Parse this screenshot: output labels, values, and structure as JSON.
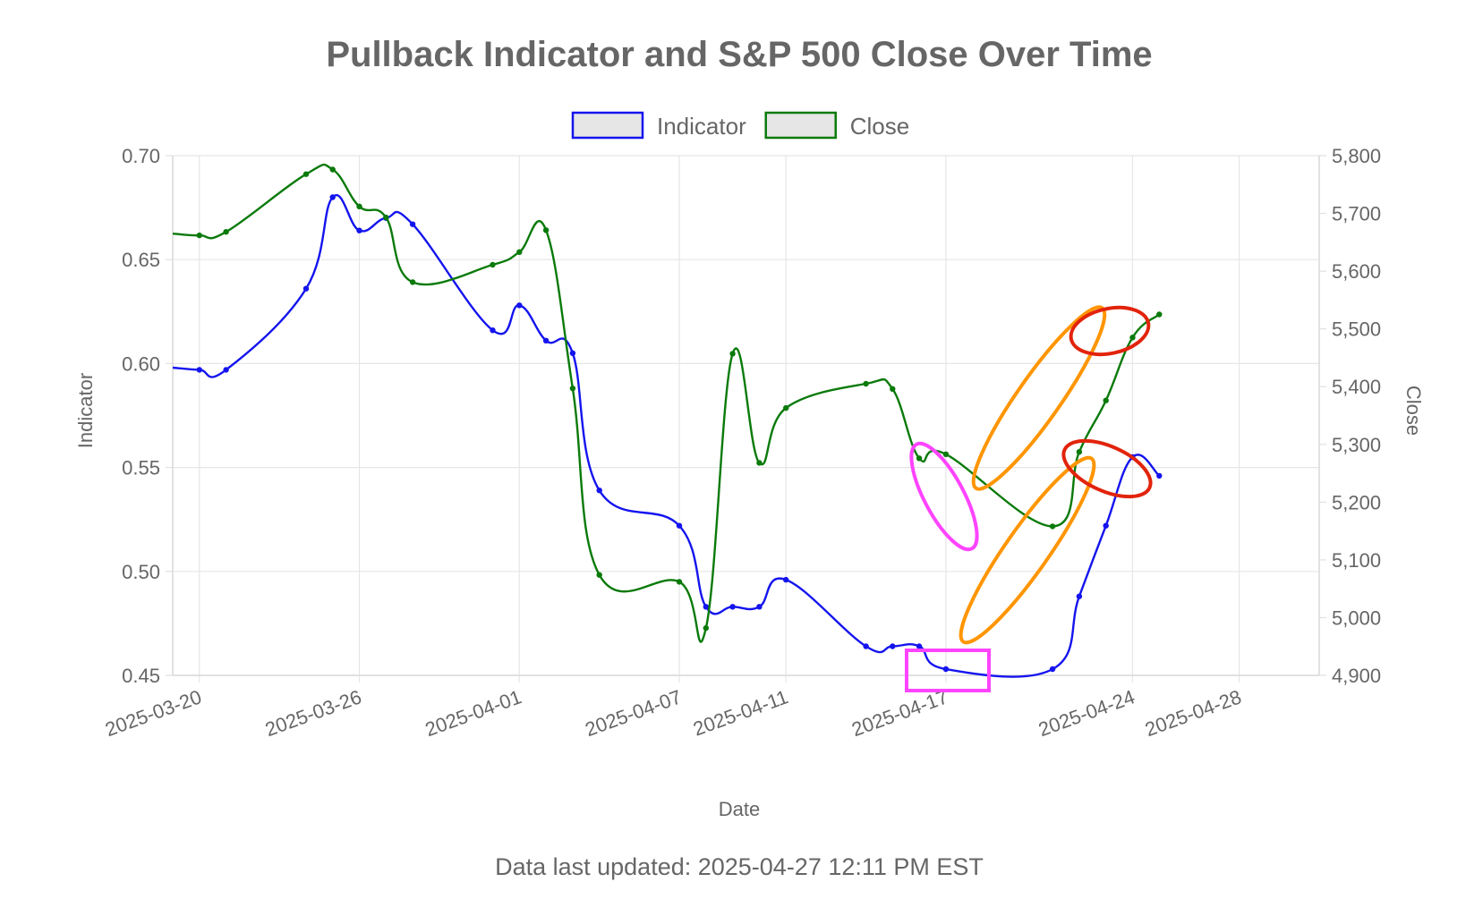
{
  "chart_data": {
    "type": "line",
    "title": "Pullback Indicator and S&P 500 Close Over Time",
    "xlabel": "Date",
    "ylabel_left": "Indicator",
    "ylabel_right": "Close",
    "x_range": [
      "2025-03-19",
      "2025-04-31"
    ],
    "x_ticks": [
      "2025-03-20",
      "2025-03-26",
      "2025-04-01",
      "2025-04-07",
      "2025-04-11",
      "2025-04-17",
      "2025-04-24",
      "2025-04-28"
    ],
    "ylim_left": [
      0.45,
      0.7
    ],
    "yticks_left": [
      "0.45",
      "0.50",
      "0.55",
      "0.60",
      "0.65",
      "0.70"
    ],
    "ylim_right": [
      4900,
      5800
    ],
    "yticks_right": [
      "4,900",
      "5,000",
      "5,100",
      "5,200",
      "5,300",
      "5,400",
      "5,500",
      "5,600",
      "5,700",
      "5,800"
    ],
    "grid": true,
    "legend_position": "top-center",
    "series": [
      {
        "name": "Indicator",
        "axis": "left",
        "color": "#1414ee",
        "x": [
          "2025-03-19",
          "2025-03-20",
          "2025-03-21",
          "2025-03-24",
          "2025-03-25",
          "2025-03-26",
          "2025-03-27",
          "2025-03-28",
          "2025-03-31",
          "2025-04-01",
          "2025-04-02",
          "2025-04-03",
          "2025-04-04",
          "2025-04-07",
          "2025-04-08",
          "2025-04-09",
          "2025-04-10",
          "2025-04-11",
          "2025-04-14",
          "2025-04-15",
          "2025-04-16",
          "2025-04-17",
          "2025-04-21",
          "2025-04-22",
          "2025-04-23",
          "2025-04-24",
          "2025-04-25"
        ],
        "values": [
          0.598,
          0.597,
          0.597,
          0.636,
          0.68,
          0.664,
          0.67,
          0.667,
          0.616,
          0.628,
          0.611,
          0.605,
          0.539,
          0.522,
          0.483,
          0.483,
          0.483,
          0.496,
          0.464,
          0.464,
          0.464,
          0.453,
          0.453,
          0.488,
          0.522,
          0.555,
          0.546
        ]
      },
      {
        "name": "Close",
        "axis": "right",
        "color": "#0a7a0a",
        "x": [
          "2025-03-19",
          "2025-03-20",
          "2025-03-21",
          "2025-03-24",
          "2025-03-25",
          "2025-03-26",
          "2025-03-27",
          "2025-03-28",
          "2025-03-31",
          "2025-04-01",
          "2025-04-02",
          "2025-04-03",
          "2025-04-04",
          "2025-04-07",
          "2025-04-08",
          "2025-04-09",
          "2025-04-10",
          "2025-04-11",
          "2025-04-14",
          "2025-04-15",
          "2025-04-16",
          "2025-04-17",
          "2025-04-21",
          "2025-04-22",
          "2025-04-23",
          "2025-04-24",
          "2025-04-25"
        ],
        "values": [
          5665,
          5662,
          5668,
          5768,
          5776,
          5712,
          5693,
          5581,
          5611,
          5633,
          5671,
          5397,
          5074,
          5062,
          4982,
          5457,
          5268,
          5363,
          5405,
          5396,
          5276,
          5283,
          5158,
          5287,
          5376,
          5485,
          5525
        ]
      }
    ]
  },
  "footer": {
    "updated_text": "Data last updated: 2025-04-27 12:11 PM EST"
  },
  "annotations": {
    "magenta": "#ff44ff",
    "orange": "#ff9500",
    "red": "#e2230b"
  }
}
